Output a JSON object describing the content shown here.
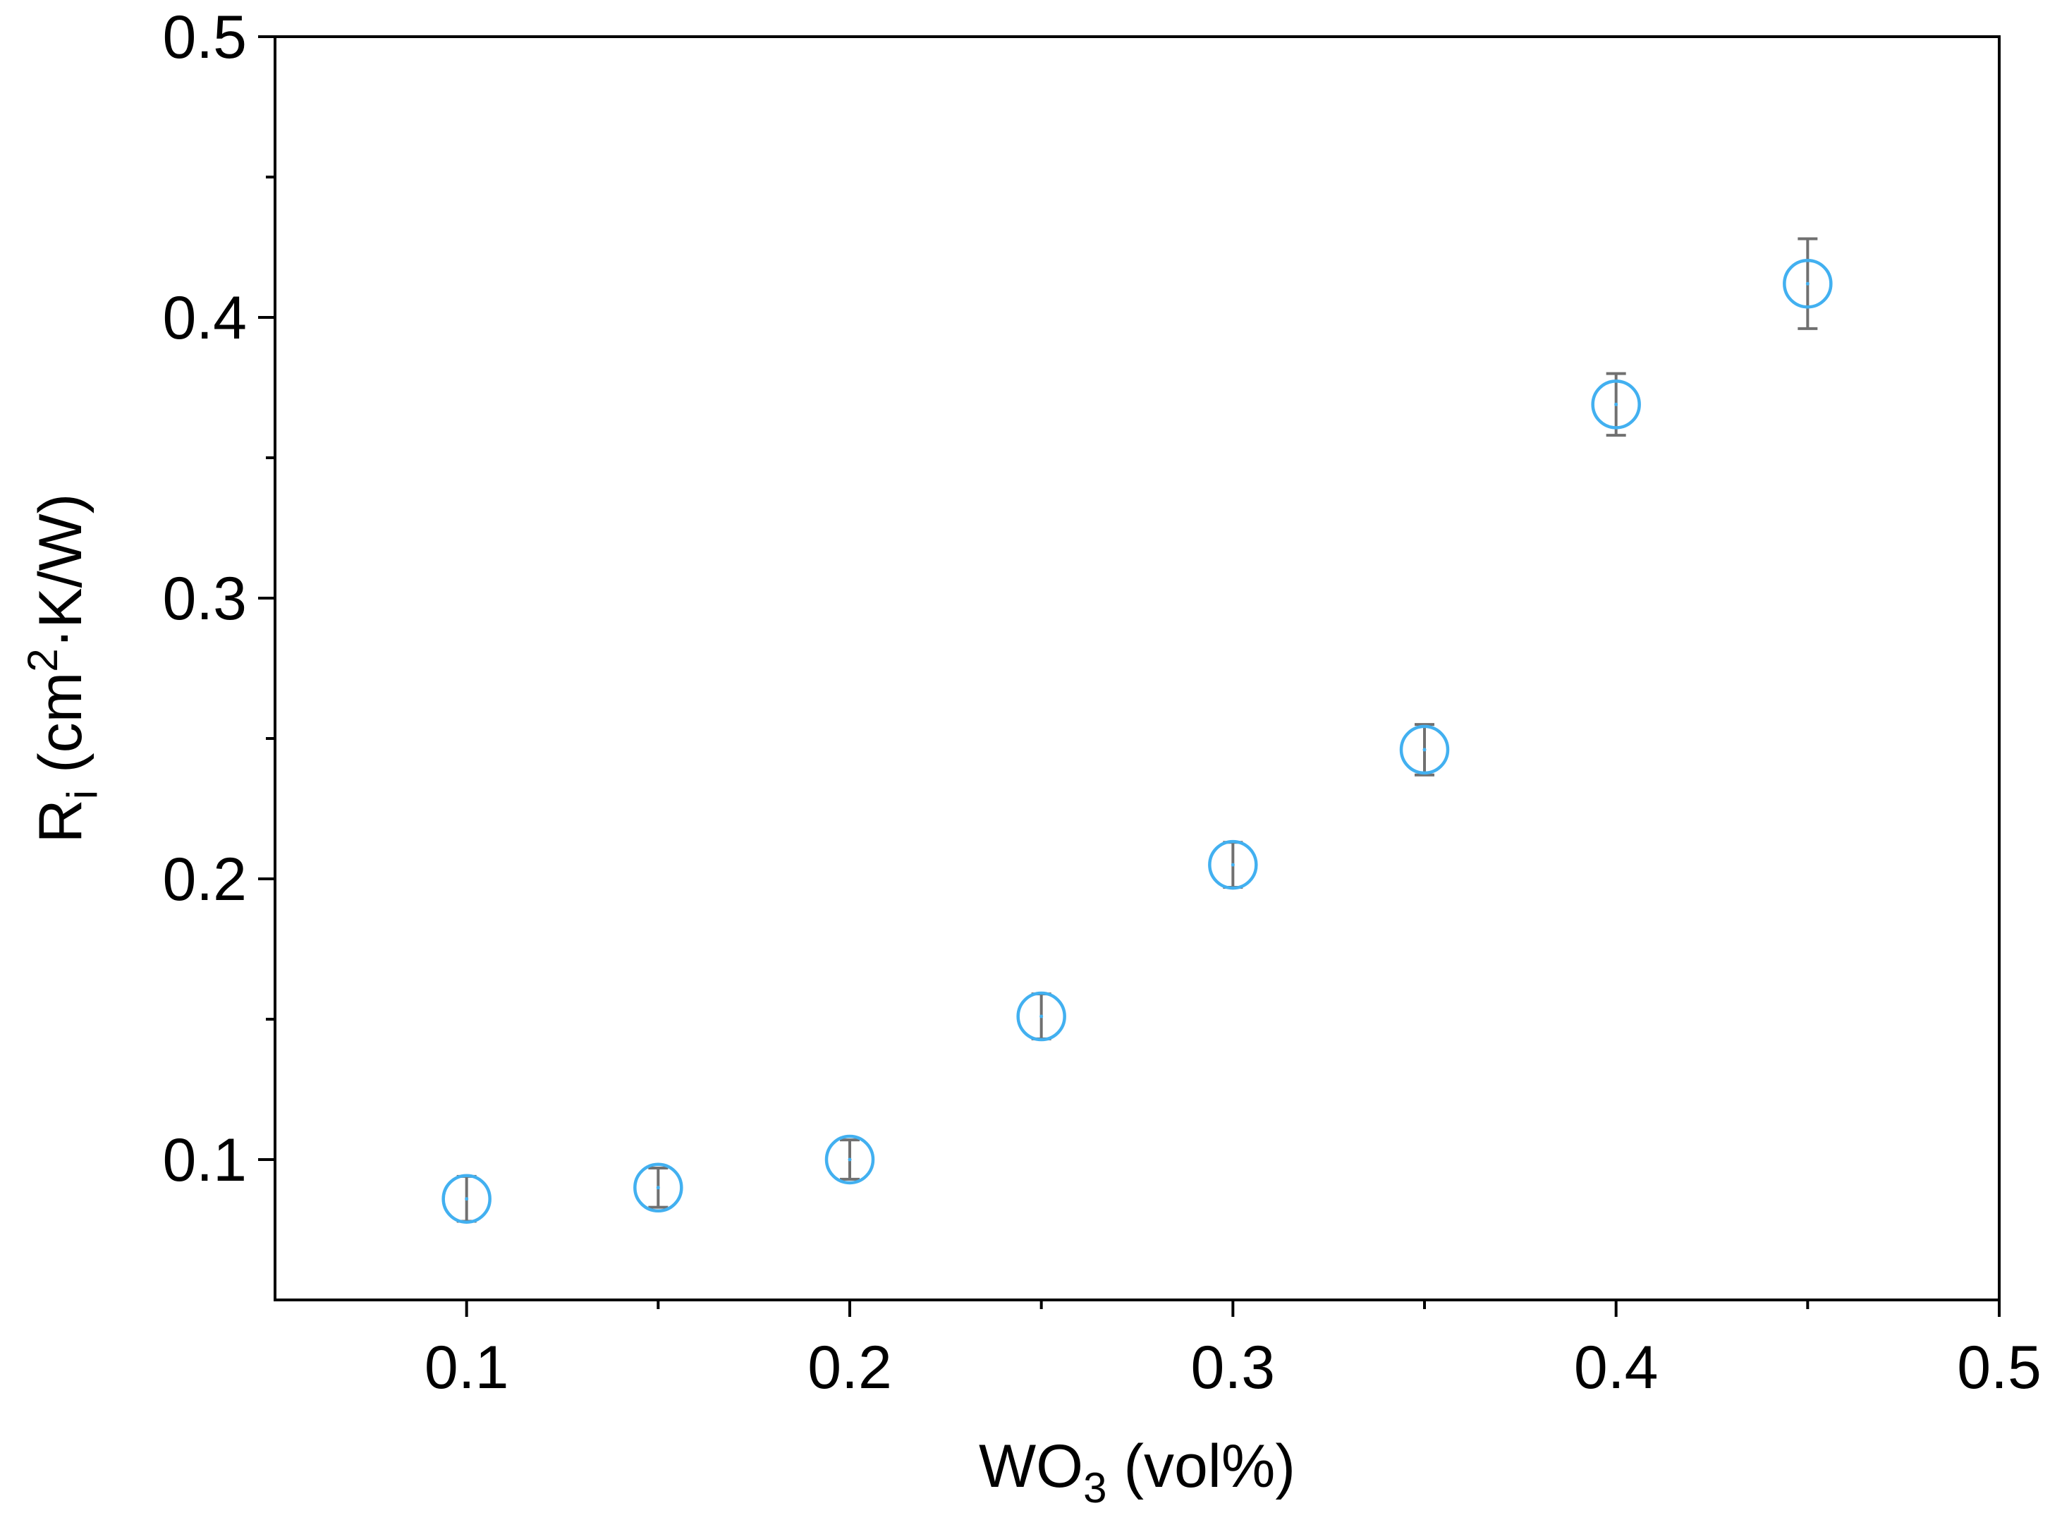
{
  "chart_data": {
    "type": "scatter",
    "title": "",
    "xlabel": {
      "main": "WO",
      "sub": "3",
      "rest": " (vol%)"
    },
    "ylabel": {
      "main": "R",
      "sub": "i",
      "rest1": " (cm",
      "sup": "2",
      "rest2": "·K/W)"
    },
    "xlim": [
      0.05,
      0.5
    ],
    "ylim": [
      0.05,
      0.5
    ],
    "xticks": [
      0.1,
      0.2,
      0.3,
      0.4,
      0.5
    ],
    "xtick_labels": [
      "0.1",
      "0.2",
      "0.3",
      "0.4",
      "0.5"
    ],
    "yticks": [
      0.1,
      0.2,
      0.3,
      0.4,
      0.5
    ],
    "ytick_labels": [
      "0.1",
      "0.2",
      "0.3",
      "0.4",
      "0.5"
    ],
    "x_minor_ticks": [
      0.15,
      0.25,
      0.35,
      0.45
    ],
    "y_minor_ticks": [
      0.15,
      0.25,
      0.35,
      0.45
    ],
    "grid": false,
    "legend": "none",
    "marker": "open-circle",
    "marker_color": "#42b0f0",
    "errorbar_color": "#707070",
    "series": [
      {
        "x": [
          0.1,
          0.15,
          0.2,
          0.25,
          0.3,
          0.35,
          0.4,
          0.45
        ],
        "y": [
          0.086,
          0.09,
          0.1,
          0.151,
          0.205,
          0.246,
          0.369,
          0.412
        ],
        "yerr": [
          0.008,
          0.007,
          0.007,
          0.008,
          0.008,
          0.009,
          0.011,
          0.016
        ]
      }
    ]
  }
}
